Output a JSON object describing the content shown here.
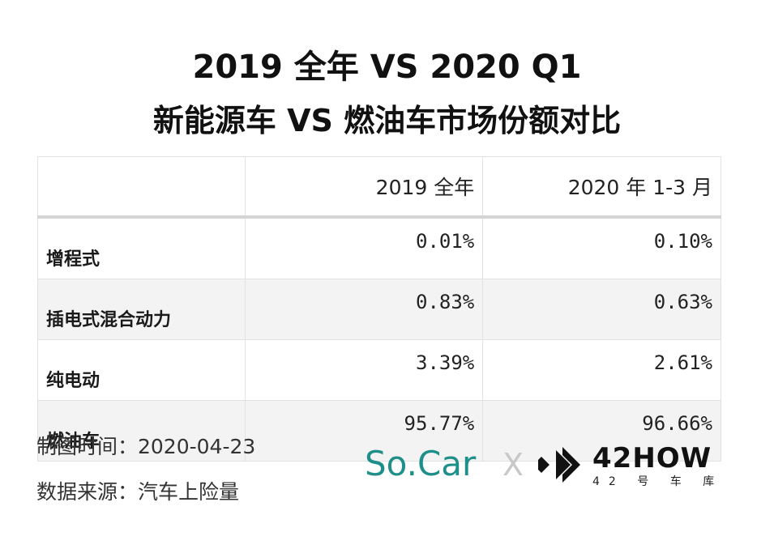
{
  "title": {
    "line1": "2019 全年 VS 2020 Q1",
    "line2": "新能源车 VS 燃油车市场份额对比"
  },
  "table": {
    "headers": [
      "",
      "2019 全年",
      "2020 年 1-3 月"
    ],
    "rows": [
      {
        "label": "增程式",
        "v2019": "0.01%",
        "v2020": "0.10%"
      },
      {
        "label": "插电式混合动力",
        "v2019": "0.83%",
        "v2020": "0.63%"
      },
      {
        "label": "纯电动",
        "v2019": "3.39%",
        "v2020": "2.61%"
      },
      {
        "label": "燃油车",
        "v2019": "95.77%",
        "v2020": "96.66%"
      }
    ]
  },
  "meta": {
    "date": "制图时间：2020-04-23",
    "source": "数据来源：汽车上险量"
  },
  "logos": {
    "socar": "So.Car",
    "separator": "X",
    "brand42": "42HOW",
    "brand42_sub": "42 号 车 库",
    "socar_color": "#1f8f8a"
  }
}
